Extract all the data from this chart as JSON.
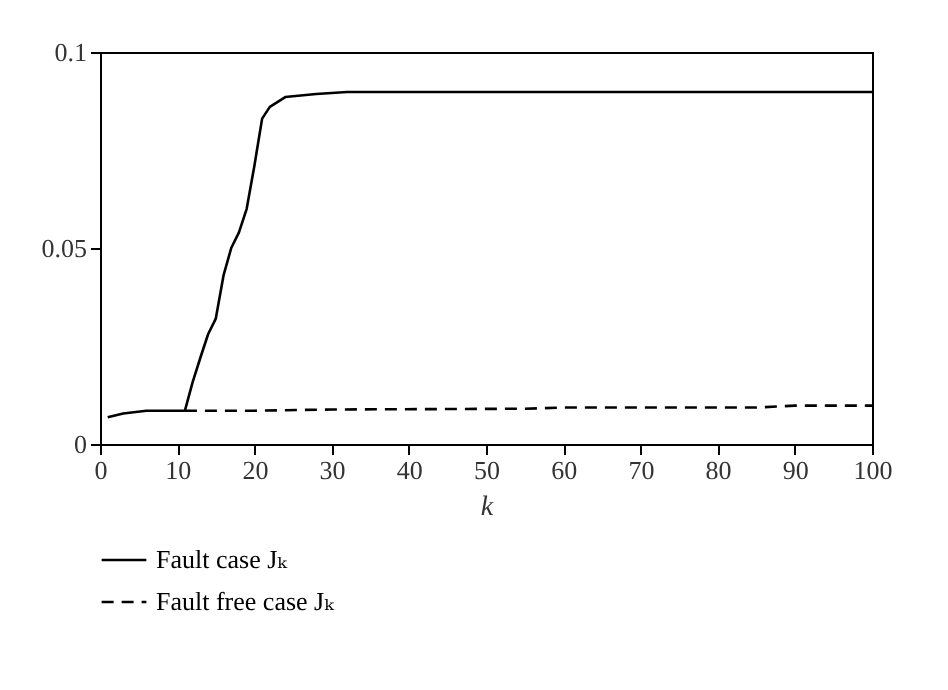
{
  "chart_data": {
    "type": "line",
    "xlabel": "k",
    "xlim": [
      0,
      100
    ],
    "xticks": [
      0,
      10,
      20,
      30,
      40,
      50,
      60,
      70,
      80,
      90,
      100
    ],
    "ylim": [
      0,
      0.1
    ],
    "yticks": [
      0,
      0.05,
      0.1
    ],
    "grid": false,
    "legend": "bottom",
    "marker": "none",
    "series": [
      {
        "name": "Fault case Jₖ",
        "color": "#000000",
        "line_style": "solid",
        "x": [
          1,
          3,
          6,
          11,
          12,
          13,
          14,
          15,
          16,
          17,
          18,
          19,
          20,
          21,
          22,
          24,
          28,
          32,
          65,
          100
        ],
        "values": [
          0.0068,
          0.0078,
          0.0085,
          0.0085,
          0.0158,
          0.022,
          0.028,
          0.032,
          0.043,
          0.05,
          0.054,
          0.06,
          0.071,
          0.083,
          0.086,
          0.0885,
          0.0893,
          0.0898,
          0.0898,
          0.0898
        ]
      },
      {
        "name": "Fault free case Jₖ",
        "color": "#000000",
        "line_style": "dashed",
        "x": [
          11,
          20,
          30,
          55,
          60,
          85,
          90,
          100
        ],
        "values": [
          0.0085,
          0.0085,
          0.0088,
          0.009,
          0.0093,
          0.0093,
          0.0098,
          0.0098
        ]
      }
    ]
  }
}
